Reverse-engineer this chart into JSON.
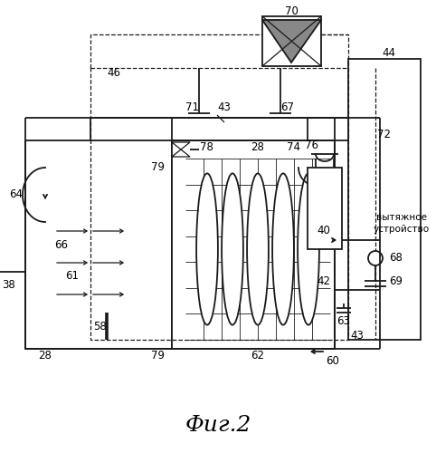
{
  "fig_label": "Фиг.2",
  "line_color": "#1a1a1a",
  "lw": 1.3,
  "lw_thin": 0.9,
  "fs": 8.5
}
